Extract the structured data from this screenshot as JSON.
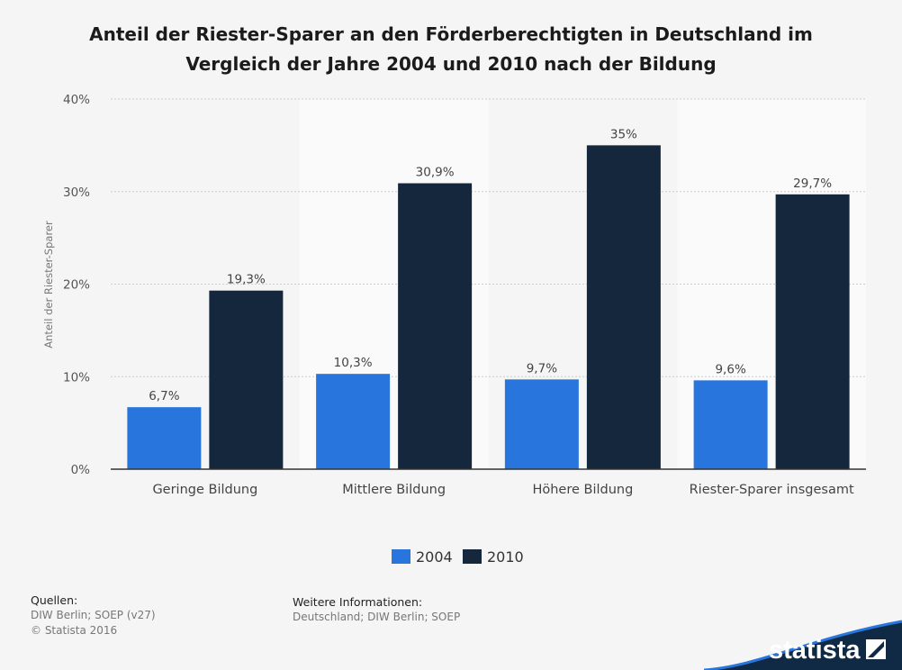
{
  "title_line1": "Anteil der Riester-Sparer an den Förderberechtigten in Deutschland im",
  "title_line2": "Vergleich der Jahre 2004 und 2010 nach der Bildung",
  "colors": {
    "s2004": "#2876dd",
    "s2010": "#14273d",
    "band": "#fafafa",
    "grid": "#cccccc"
  },
  "chart_data": {
    "type": "bar",
    "title": "Anteil der Riester-Sparer an den Förderberechtigten in Deutschland im Vergleich der Jahre 2004 und 2010 nach der Bildung",
    "categories": [
      "Geringe Bildung",
      "Mittlere Bildung",
      "Höhere Bildung",
      "Riester-Sparer insgesamt"
    ],
    "series": [
      {
        "name": "2004",
        "values": [
          6.7,
          10.3,
          9.7,
          9.6
        ],
        "labels": [
          "6,7%",
          "10,3%",
          "9,7%",
          "9,6%"
        ]
      },
      {
        "name": "2010",
        "values": [
          19.3,
          30.9,
          35,
          29.7
        ],
        "labels": [
          "19,3%",
          "30,9%",
          "35%",
          "29,7%"
        ]
      }
    ],
    "ylabel": "Anteil der Riester-Sparer",
    "ylim": [
      0,
      40
    ],
    "yticks": [
      0,
      10,
      20,
      30,
      40
    ],
    "ytick_labels": [
      "0%",
      "10%",
      "20%",
      "30%",
      "40%"
    ],
    "grid": true,
    "legend": "bottom-center"
  },
  "footer": {
    "sources_heading": "Quellen:",
    "sources_line1": "DIW Berlin; SOEP (v27)",
    "sources_line2": "© Statista 2016",
    "info_heading": "Weitere Informationen:",
    "info_text": "Deutschland; DIW Berlin; SOEP"
  },
  "brand": {
    "name": "statista"
  }
}
